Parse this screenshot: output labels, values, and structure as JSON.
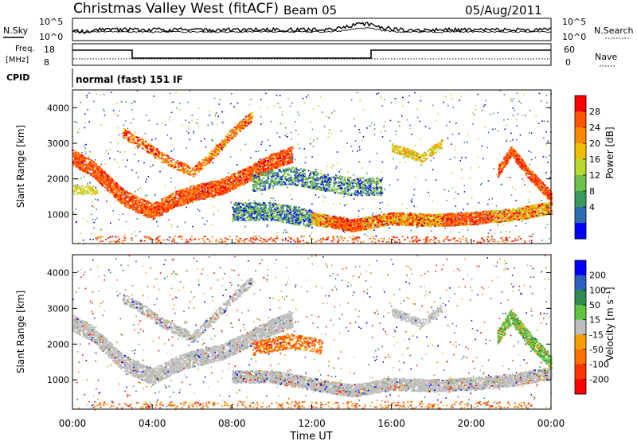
{
  "header": {
    "title": "Christmas Valley West (fitACF)",
    "beam": "Beam 05",
    "date": "05/Aug/2011"
  },
  "summary_panels": {
    "nsky_label": "N.Sky",
    "nsearch_label": "N.Search",
    "freq_label_line1": "Freq.",
    "freq_label_line2": "[MHz]",
    "nave_label": "Nave",
    "cpid_label": "CPID",
    "cpid_text": "normal (fast) 151 IF",
    "noise_left_ticks": [
      "10^5",
      "10^0"
    ],
    "noise_right_ticks": [
      "10^5",
      "10^0"
    ],
    "freq_left_ticks": [
      "18",
      "8"
    ],
    "nave_right_ticks": [
      "60",
      "0"
    ]
  },
  "chart_data": [
    {
      "type": "heatmap",
      "name": "power",
      "ylabel": "Slant Range [km]",
      "yticks": [
        "4000",
        "3000",
        "2000",
        "1000"
      ],
      "ylim": [
        180,
        4500
      ],
      "xlim": [
        0,
        24
      ],
      "colorbar": {
        "label": "Power [dB]",
        "ticks": [
          "28",
          "24",
          "20",
          "16",
          "12",
          "8",
          "4"
        ],
        "colors": [
          "#ff0000",
          "#ff5500",
          "#ff8800",
          "#f0c000",
          "#b7d82d",
          "#6ec049",
          "#3a9c5c",
          "#2d6bb0",
          "#0000ff"
        ]
      }
    },
    {
      "type": "heatmap",
      "name": "velocity",
      "ylabel": "Slant Range [km]",
      "yticks": [
        "4000",
        "3000",
        "2000",
        "1000"
      ],
      "ylim": [
        180,
        4500
      ],
      "xlim": [
        0,
        24
      ],
      "colorbar": {
        "label": "Velocity [m s⁻¹]",
        "ticks": [
          "200",
          "100",
          "50",
          "15",
          "-15",
          "-50",
          "-100",
          "-200"
        ],
        "colors": [
          "#0000ff",
          "#2b5fc0",
          "#2f8c4f",
          "#5cc640",
          "#bdbdbd",
          "#f5a000",
          "#ff7000",
          "#ff3300",
          "#ff0000"
        ]
      }
    }
  ],
  "x_axis": {
    "label": "Time UT",
    "ticks": [
      "00:00",
      "04:00",
      "08:00",
      "12:00",
      "16:00",
      "20:00",
      "00:00"
    ]
  }
}
